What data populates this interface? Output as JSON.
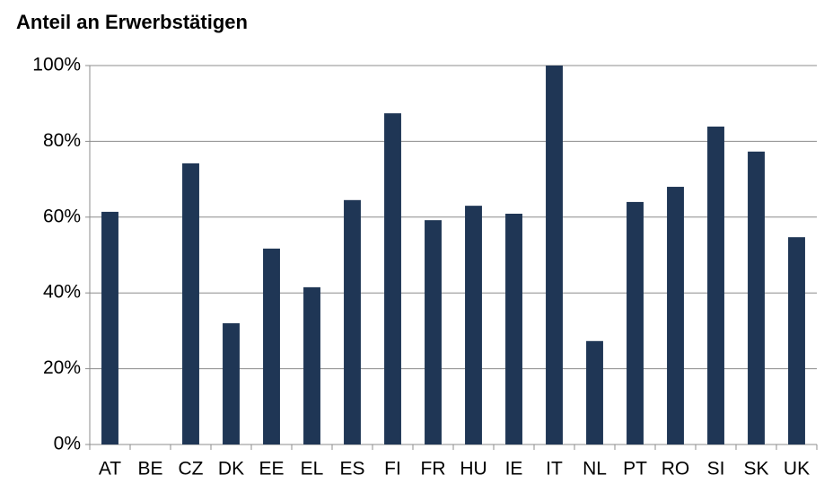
{
  "chart_data": {
    "type": "bar",
    "title": "Anteil an Erwerbstätigen",
    "categories": [
      "AT",
      "BE",
      "CZ",
      "DK",
      "EE",
      "EL",
      "ES",
      "FI",
      "FR",
      "HU",
      "IE",
      "IT",
      "NL",
      "PT",
      "RO",
      "SI",
      "SK",
      "UK"
    ],
    "values": [
      61.4,
      null,
      74.2,
      32.0,
      51.7,
      41.5,
      64.5,
      87.4,
      59.2,
      63.0,
      60.9,
      100,
      27.3,
      64.0,
      68.0,
      83.9,
      77.3,
      54.7
    ],
    "color": "#1f3655",
    "ylim": [
      0,
      100
    ],
    "yticks": [
      {
        "value": 0,
        "label": "0%"
      },
      {
        "value": 20,
        "label": "20%"
      },
      {
        "value": 40,
        "label": "40%"
      },
      {
        "value": 60,
        "label": "60%"
      },
      {
        "value": 80,
        "label": "80%"
      },
      {
        "value": 100,
        "label": "100%"
      }
    ],
    "grid": true
  }
}
